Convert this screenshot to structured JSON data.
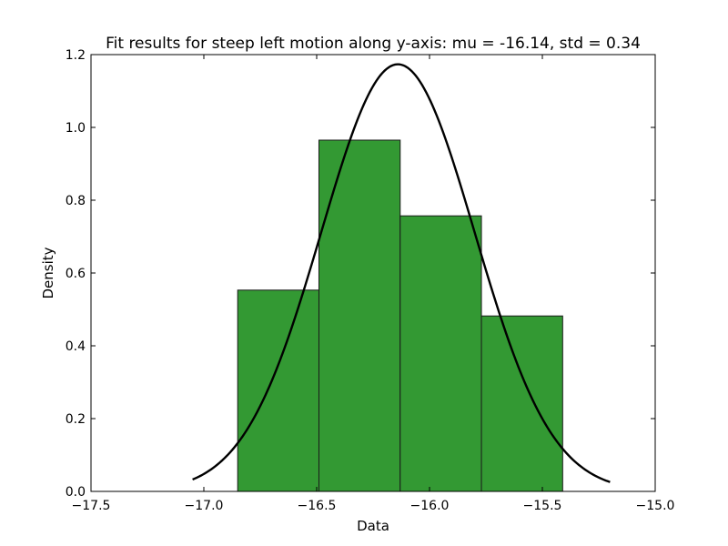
{
  "chart_data": {
    "type": "bar",
    "title": "Fit results for steep left motion along y-axis: mu = -16.14,  std = 0.34",
    "xlabel": "Data",
    "ylabel": "Density",
    "xlim": [
      -17.5,
      -15.0
    ],
    "ylim": [
      0.0,
      1.2
    ],
    "xticks": [
      -17.5,
      -17.0,
      -16.5,
      -16.0,
      -15.5,
      -15.0
    ],
    "xtick_labels": [
      "−17.5",
      "−17.0",
      "−16.5",
      "−16.0",
      "−15.5",
      "−15.0"
    ],
    "yticks": [
      0.0,
      0.2,
      0.4,
      0.6,
      0.8,
      1.0,
      1.2
    ],
    "ytick_labels": [
      "0.0",
      "0.2",
      "0.4",
      "0.6",
      "0.8",
      "1.0",
      "1.2"
    ],
    "grid": false,
    "bin_edges": [
      -16.85,
      -16.49,
      -16.13,
      -15.77,
      -15.41
    ],
    "values": [
      0.553,
      0.965,
      0.757,
      0.482
    ],
    "bar_color": "#339933",
    "bar_edge_color": "#1a1a1a",
    "fit_curve": {
      "type": "normal_pdf",
      "mu": -16.14,
      "std": 0.34,
      "x_range": [
        -17.05,
        -15.2
      ],
      "color": "#000000"
    }
  }
}
